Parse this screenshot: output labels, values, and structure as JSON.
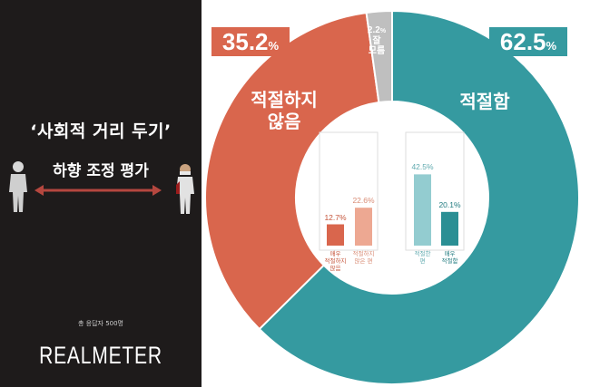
{
  "left_panel": {
    "title_line1": "‘사회적 거리 두기’",
    "title_line2": "하향 조정 평가",
    "respondents": "총 응답자 500명",
    "brand": "REALMETER"
  },
  "chart_data": {
    "type": "pie",
    "donut": true,
    "slices": [
      {
        "label": "적절함",
        "value": 62.5,
        "color": "#359aa0"
      },
      {
        "label": "적절하지 않음",
        "value": 35.2,
        "color": "#d9664d"
      },
      {
        "label": "잘 모름",
        "value": 2.2,
        "color": "#bfbfbf"
      }
    ],
    "slice_value_labels": {
      "appropriate": "62.5",
      "inappropriate": "35.2",
      "unknown": "2.2"
    },
    "percent_sign": "%",
    "unknown_label_line1": "잘",
    "unknown_label_line2": "모름",
    "inner_bar_chart": {
      "type": "bar",
      "categories": [
        "매우 적절하지 않음",
        "적절하지 않은 편",
        "적절한 편",
        "매우 적절함"
      ],
      "category_labels": [
        [
          "매우",
          "적절하지",
          "않음"
        ],
        [
          "적절하지",
          "않은 편"
        ],
        [
          "적절한",
          "편"
        ],
        [
          "매우",
          "적절함"
        ]
      ],
      "values": [
        12.7,
        22.6,
        42.5,
        20.1
      ],
      "value_labels": [
        "12.7%",
        "22.6%",
        "42.5%",
        "20.1%"
      ],
      "colors": [
        "#d9664d",
        "#eda892",
        "#93ccd0",
        "#2a8f94"
      ],
      "label_colors": [
        "#c5553b",
        "#d98c75",
        "#5fa9ae",
        "#237c80"
      ]
    }
  }
}
